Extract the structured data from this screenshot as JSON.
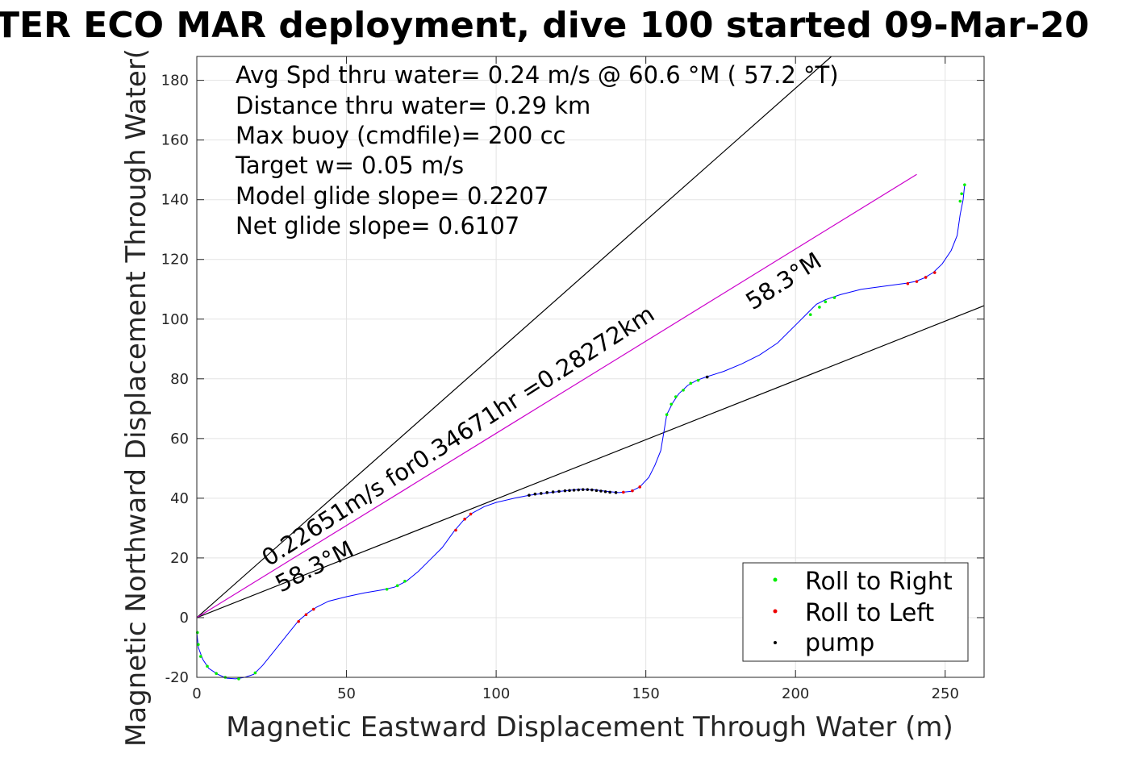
{
  "chart_data": {
    "type": "scatter",
    "title": "TER ECO MAR deployment, dive 100 started 09-Mar-20",
    "xlabel": "Magnetic Eastward Displacement Through Water (m)",
    "ylabel": "Magnetic Northward Displacement Through Water(",
    "xlim": [
      0,
      263
    ],
    "ylim": [
      -20,
      188
    ],
    "xticks": [
      0,
      50,
      100,
      150,
      200,
      250
    ],
    "yticks": [
      -20,
      0,
      20,
      40,
      60,
      80,
      100,
      120,
      140,
      160,
      180
    ],
    "grid": true,
    "info_lines": [
      "Avg Spd thru water=  0.24 m/s @  60.6 °M ( 57.2 °T)",
      "Distance thru water=  0.29 km",
      "Max buoy (cmdfile)= 200 cc",
      "Target w= 0.05 m/s",
      "Model glide slope= 0.2207",
      "Net glide slope= 0.6107"
    ],
    "annotations": {
      "speed_label": "0.22651m/s for0.34671hr =0.28272km",
      "heading_upper": "58.3°M",
      "heading_lower": "58.3°M"
    },
    "reference_lines": [
      {
        "color": "#000000",
        "points": [
          [
            0,
            0
          ],
          [
            212,
            188
          ]
        ]
      },
      {
        "color": "#000000",
        "points": [
          [
            0,
            0
          ],
          [
            263,
            104.5
          ]
        ]
      },
      {
        "color": "#cc00cc",
        "points": [
          [
            0,
            0
          ],
          [
            240.5,
            148.5
          ]
        ]
      }
    ],
    "track": {
      "color": "#0000ff",
      "points": [
        [
          0,
          0
        ],
        [
          0,
          -5
        ],
        [
          0.5,
          -10
        ],
        [
          2,
          -14
        ],
        [
          4,
          -17
        ],
        [
          7,
          -19
        ],
        [
          10,
          -20.3
        ],
        [
          13,
          -20.5
        ],
        [
          16,
          -20
        ],
        [
          19,
          -19
        ],
        [
          22,
          -16
        ],
        [
          26,
          -11
        ],
        [
          30,
          -6
        ],
        [
          34,
          -1
        ],
        [
          37,
          1.5
        ],
        [
          40,
          3.5
        ],
        [
          44,
          5.5
        ],
        [
          50,
          7
        ],
        [
          56,
          8.3
        ],
        [
          62,
          9.3
        ],
        [
          66,
          10.2
        ],
        [
          70,
          12.2
        ],
        [
          74,
          15.5
        ],
        [
          78,
          19.5
        ],
        [
          82,
          23.5
        ],
        [
          86,
          29
        ],
        [
          89,
          32.5
        ],
        [
          92,
          35
        ],
        [
          96,
          37.2
        ],
        [
          100,
          38.6
        ],
        [
          106,
          40
        ],
        [
          111,
          41
        ],
        [
          117,
          41.8
        ],
        [
          123,
          42.5
        ],
        [
          128,
          43
        ],
        [
          133,
          42.8
        ],
        [
          137,
          42.3
        ],
        [
          141,
          41.9
        ],
        [
          145,
          42.3
        ],
        [
          148,
          43.8
        ],
        [
          151,
          47
        ],
        [
          153,
          51
        ],
        [
          155,
          56
        ],
        [
          156,
          62
        ],
        [
          157,
          68
        ],
        [
          159,
          72
        ],
        [
          161,
          75
        ],
        [
          164,
          77.8
        ],
        [
          167,
          79.5
        ],
        [
          170,
          80.6
        ],
        [
          176,
          82.5
        ],
        [
          182,
          85
        ],
        [
          188,
          88
        ],
        [
          194,
          92
        ],
        [
          200,
          98
        ],
        [
          204,
          102
        ],
        [
          207,
          105
        ],
        [
          210,
          106.5
        ],
        [
          215,
          108.2
        ],
        [
          222,
          110
        ],
        [
          230,
          111.1
        ],
        [
          237,
          112
        ],
        [
          240,
          112.6
        ],
        [
          243,
          113.8
        ],
        [
          246,
          115.6
        ],
        [
          249,
          118.5
        ],
        [
          252,
          123
        ],
        [
          254,
          128
        ],
        [
          255,
          135
        ],
        [
          256,
          140
        ],
        [
          256.5,
          145
        ]
      ]
    },
    "series": [
      {
        "name": "Roll to Right",
        "color": "#00ee00",
        "points": [
          [
            0.2,
            -5
          ],
          [
            0.5,
            -9
          ],
          [
            1.3,
            -13
          ],
          [
            3.5,
            -16.3
          ],
          [
            6.5,
            -18.7
          ],
          [
            9.5,
            -20
          ],
          [
            14,
            -20.5
          ],
          [
            19.5,
            -18.5
          ],
          [
            63.5,
            9.5
          ],
          [
            67,
            10.7
          ],
          [
            69.5,
            12.2
          ],
          [
            157,
            68
          ],
          [
            158.5,
            71.5
          ],
          [
            160,
            74
          ],
          [
            162.5,
            76.2
          ],
          [
            165,
            78.5
          ],
          [
            167.5,
            79.5
          ],
          [
            205,
            101.5
          ],
          [
            208,
            104
          ],
          [
            210,
            105.8
          ],
          [
            213,
            107.2
          ],
          [
            255,
            139.5
          ],
          [
            255.5,
            142
          ],
          [
            256.5,
            145
          ]
        ]
      },
      {
        "name": "Roll to Left",
        "color": "#ee0000",
        "points": [
          [
            34,
            -1.3
          ],
          [
            36.5,
            1
          ],
          [
            39,
            2.8
          ],
          [
            86.5,
            29.3
          ],
          [
            89.5,
            33
          ],
          [
            91.5,
            34.7
          ],
          [
            142.5,
            42
          ],
          [
            145.5,
            42.5
          ],
          [
            148,
            43.8
          ],
          [
            237.5,
            111.9
          ],
          [
            240.5,
            112.6
          ],
          [
            243.5,
            114
          ],
          [
            246.5,
            115.6
          ]
        ]
      },
      {
        "name": "pump",
        "color": "#000000",
        "points": [
          [
            111,
            41
          ],
          [
            113,
            41.4
          ],
          [
            115,
            41.6
          ],
          [
            117,
            41.9
          ],
          [
            119,
            42.1
          ],
          [
            121,
            42.3
          ],
          [
            123,
            42.5
          ],
          [
            124.5,
            42.6
          ],
          [
            126,
            42.7
          ],
          [
            127.5,
            42.8
          ],
          [
            129,
            42.9
          ],
          [
            130.5,
            42.9
          ],
          [
            132,
            42.8
          ],
          [
            133.5,
            42.6
          ],
          [
            135,
            42.4
          ],
          [
            136.5,
            42.2
          ],
          [
            138,
            42
          ],
          [
            140,
            41.9
          ],
          [
            170.5,
            80.6
          ]
        ]
      }
    ],
    "legend_position": "bottom-right"
  }
}
